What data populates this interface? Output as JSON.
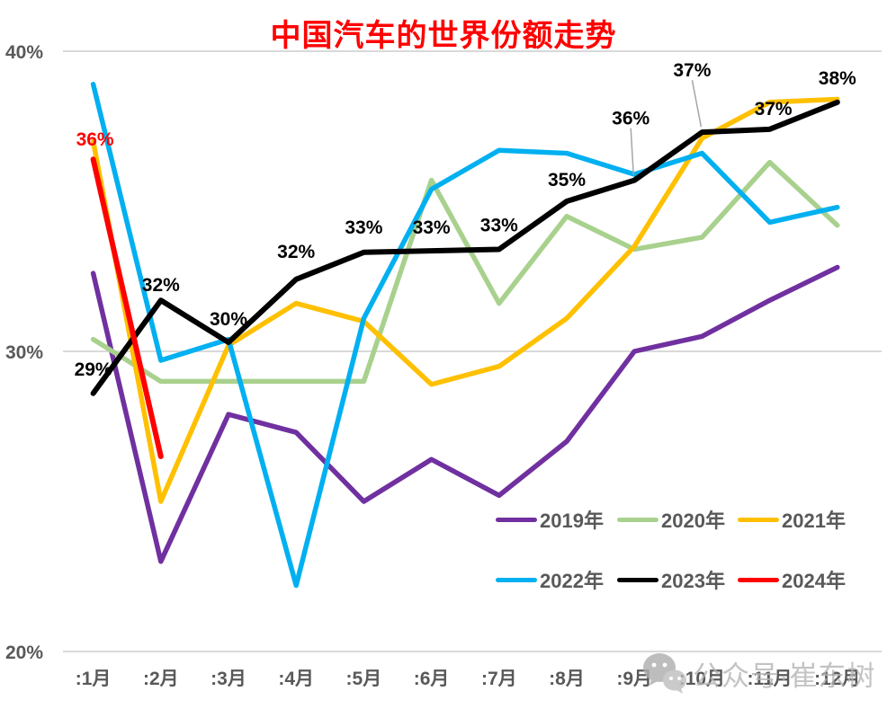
{
  "title": {
    "text": "中国汽车的世界份额走势",
    "color": "#FF0000"
  },
  "watermark": {
    "icon": "wechat-icon",
    "text": "公众号·崔东树"
  },
  "axes": {
    "y": {
      "min": 20,
      "max": 40,
      "ticks": [
        {
          "label": "40%",
          "value": 40
        },
        {
          "label": "30%",
          "value": 30
        },
        {
          "label": "20%",
          "value": 20
        }
      ]
    },
    "x": {
      "labels": [
        ":1月",
        ":2月",
        ":3月",
        ":4月",
        ":5月",
        ":6月",
        ":7月",
        ":8月",
        ":9月",
        ":10月",
        ":11月",
        ":12月"
      ]
    }
  },
  "legend": {
    "rows": [
      [
        {
          "label": "2019年",
          "color": "#7030A0"
        },
        {
          "label": "2020年",
          "color": "#A9D18E"
        },
        {
          "label": "2021年",
          "color": "#FFC000"
        }
      ],
      [
        {
          "label": "2022年",
          "color": "#00B0F0"
        },
        {
          "label": "2023年",
          "color": "#000000"
        },
        {
          "label": "2024年",
          "color": "#FF0000"
        }
      ]
    ]
  },
  "chart_data": {
    "type": "line",
    "title": "中国汽车的世界份额走势",
    "xlabel": "",
    "ylabel": "",
    "ylim": [
      20,
      40
    ],
    "grid": "horizontal",
    "gridline_values": [
      40,
      30,
      20
    ],
    "legend_position": "inside-bottom-right",
    "categories": [
      ":1月",
      ":2月",
      ":3月",
      ":4月",
      ":5月",
      ":6月",
      ":7月",
      ":8月",
      ":9月",
      ":10月",
      ":11月",
      ":12月"
    ],
    "series": [
      {
        "name": "2019年",
        "color": "#7030A0",
        "width": 5.5,
        "values": [
          32.6,
          23.0,
          27.9,
          27.3,
          25.0,
          26.4,
          25.2,
          27.0,
          30.0,
          30.5,
          31.7,
          32.8
        ]
      },
      {
        "name": "2020年",
        "color": "#A9D18E",
        "width": 5.5,
        "values": [
          30.4,
          29.0,
          29.0,
          29.0,
          29.0,
          35.7,
          31.6,
          34.5,
          33.4,
          33.8,
          36.3,
          34.2
        ]
      },
      {
        "name": "2021年",
        "color": "#FFC000",
        "width": 5.5,
        "values": [
          37.0,
          25.0,
          30.2,
          31.6,
          31.0,
          28.9,
          29.5,
          31.1,
          33.5,
          37.1,
          38.3,
          38.4
        ]
      },
      {
        "name": "2022年",
        "color": "#00B0F0",
        "width": 5.5,
        "values": [
          38.9,
          29.7,
          30.4,
          22.2,
          31.1,
          35.4,
          36.7,
          36.6,
          35.9,
          36.6,
          34.3,
          34.8
        ]
      },
      {
        "name": "2023年",
        "color": "#000000",
        "width": 6,
        "values": [
          28.6,
          31.7,
          30.3,
          32.4,
          33.3,
          33.35,
          33.4,
          35.0,
          35.7,
          37.3,
          37.4,
          38.3
        ],
        "point_labels": [
          "29%",
          "32%",
          "30%",
          "32%",
          "33%",
          "33%",
          "33%",
          "35%",
          "36%",
          "37%",
          "37%",
          "38%"
        ],
        "label_color": "#000000",
        "label_offsets": {
          "0": {
            "dy": -20
          },
          "1": {
            "dy": -10
          },
          "2": {
            "dy": -19
          },
          "3": {
            "dy": -24
          },
          "4": {
            "dy": -21
          },
          "5": {
            "dy": -19
          },
          "6": {
            "dy": -20
          },
          "7": {
            "dy": -17
          },
          "8": {
            "dy": -62,
            "dx": -4,
            "leader": true
          },
          "9": {
            "dy": -62,
            "dx": -11,
            "leader": true
          },
          "10": {
            "dy": -16,
            "dx": 4
          },
          "11": {
            "dy": -20
          }
        }
      },
      {
        "name": "2024年",
        "color": "#FF0000",
        "width": 6,
        "values": [
          36.4,
          26.5,
          null,
          null,
          null,
          null,
          null,
          null,
          null,
          null,
          null,
          null
        ],
        "point_labels": [
          "36%",
          null,
          null,
          null,
          null,
          null,
          null,
          null,
          null,
          null,
          null,
          null
        ],
        "label_color": "#FF0000",
        "label_offsets": {
          "0": {
            "dy": -15,
            "dx": 2
          }
        }
      }
    ],
    "annotation_leader_color": "#A6A6A6",
    "gridline_color": "#D9D9D9",
    "tick_color": "#595959"
  }
}
